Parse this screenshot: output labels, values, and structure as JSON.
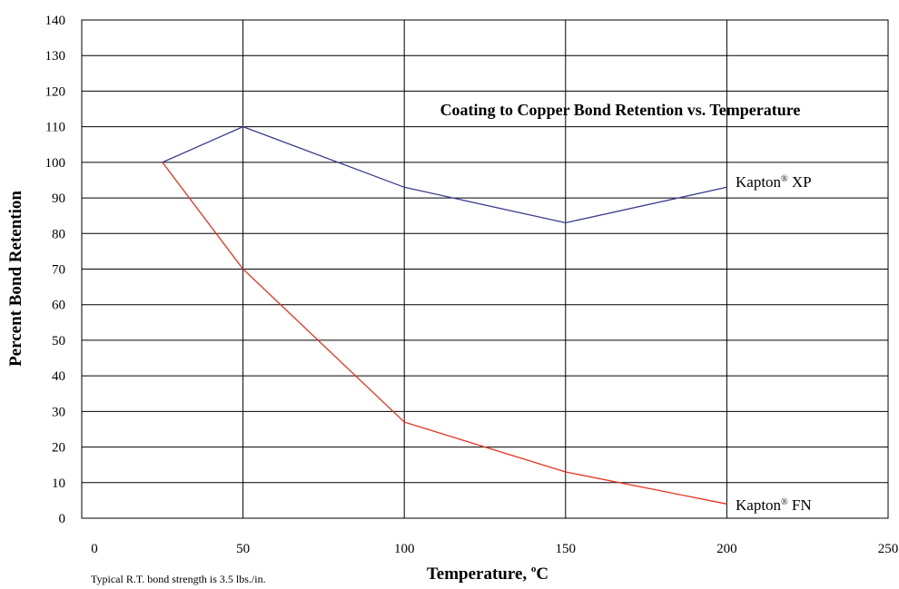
{
  "chart_data": {
    "type": "line",
    "title": "Coating to Copper Bond Retention vs. Temperature",
    "xlabel": "Temperature, ",
    "xlabel_super": "o",
    "xlabel_unit": "C",
    "ylabel": "Percent Bond Retention",
    "xlim": [
      0,
      250
    ],
    "ylim": [
      0,
      140
    ],
    "x_ticks": [
      0,
      50,
      100,
      150,
      200,
      250
    ],
    "y_ticks": [
      0,
      10,
      20,
      30,
      40,
      50,
      60,
      70,
      80,
      90,
      100,
      110,
      120,
      130,
      140
    ],
    "grid": true,
    "series": [
      {
        "name": "Kapton XP",
        "label_main": "Kapton",
        "label_super": "®",
        "label_suffix": " XP",
        "color": "#3a3d8f",
        "x": [
          25,
          50,
          100,
          150,
          200
        ],
        "values": [
          100,
          110,
          93,
          83,
          93
        ]
      },
      {
        "name": "Kapton FN",
        "label_main": "Kapton",
        "label_super": "®",
        "label_suffix": " FN",
        "color": "#e8321e",
        "x": [
          25,
          50,
          100,
          150,
          200
        ],
        "values": [
          100,
          70,
          27,
          13,
          4
        ]
      }
    ]
  },
  "footnote": "Typical R.T. bond strength is 3.5 lbs./in."
}
